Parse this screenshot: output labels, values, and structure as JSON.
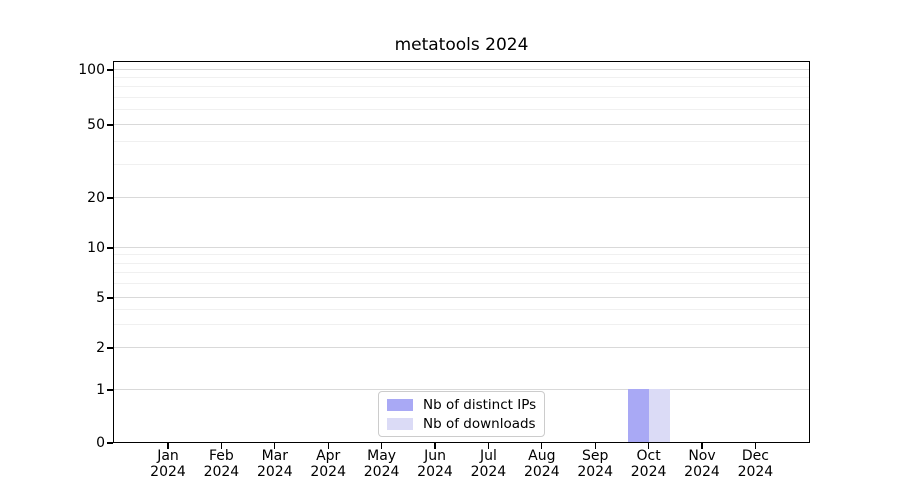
{
  "chart_data": {
    "type": "bar",
    "title": "metatools 2024",
    "categories": [
      "Jan",
      "Feb",
      "Mar",
      "Apr",
      "May",
      "Jun",
      "Jul",
      "Aug",
      "Sep",
      "Oct",
      "Nov",
      "Dec"
    ],
    "x_tick_labels": [
      [
        "Jan",
        "2024"
      ],
      [
        "Feb",
        "2024"
      ],
      [
        "Mar",
        "2024"
      ],
      [
        "Apr",
        "2024"
      ],
      [
        "May",
        "2024"
      ],
      [
        "Jun",
        "2024"
      ],
      [
        "Jul",
        "2024"
      ],
      [
        "Aug",
        "2024"
      ],
      [
        "Sep",
        "2024"
      ],
      [
        "Oct",
        "2024"
      ],
      [
        "Nov",
        "2024"
      ],
      [
        "Dec",
        "2024"
      ]
    ],
    "series": [
      {
        "name": "Nb of distinct IPs",
        "color": "#a9a9f5",
        "values": [
          0,
          0,
          0,
          0,
          0,
          0,
          0,
          0,
          0,
          1,
          0,
          0
        ]
      },
      {
        "name": "Nb of downloads",
        "color": "#dbdbf6",
        "values": [
          0,
          0,
          0,
          0,
          0,
          0,
          0,
          0,
          0,
          1,
          0,
          0
        ]
      }
    ],
    "yscale": "symlog",
    "ylabel": "",
    "xlabel": "",
    "y_ticks": [
      0,
      1,
      2,
      5,
      10,
      20,
      50,
      100
    ],
    "y_tick_labels": [
      "0",
      "1",
      "2",
      "5",
      "10",
      "20",
      "50",
      "100"
    ],
    "y_minor_ticks": [
      3,
      4,
      6,
      7,
      8,
      9,
      30,
      40,
      60,
      70,
      80,
      90
    ],
    "ylim": [
      0,
      112
    ],
    "grid": "both",
    "legend_position": "lower center"
  },
  "colors": {
    "major_grid": "#d9d9d9",
    "minor_grid": "#f0f0f0",
    "spine": "#000000",
    "legend_border": "#cccccc",
    "background": "#ffffff"
  }
}
